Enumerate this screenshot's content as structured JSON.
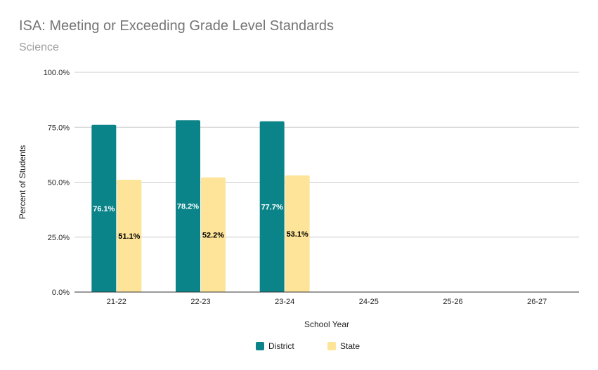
{
  "chart_data": {
    "type": "bar",
    "title": "ISA: Meeting or Exceeding Grade Level Standards",
    "subtitle": "Science",
    "xlabel": "School Year",
    "ylabel": "Percent of Students",
    "categories": [
      "21-22",
      "22-23",
      "23-24",
      "24-25",
      "25-26",
      "26-27"
    ],
    "series": [
      {
        "name": "District",
        "color": "#0b8489",
        "label_color": "#ffffff",
        "values": [
          76.1,
          78.2,
          77.7,
          null,
          null,
          null
        ],
        "labels": [
          "76.1%",
          "78.2%",
          "77.7%",
          "",
          "",
          ""
        ]
      },
      {
        "name": "State",
        "color": "#fee499",
        "label_color": "#000000",
        "values": [
          51.1,
          52.2,
          53.1,
          null,
          null,
          null
        ],
        "labels": [
          "51.1%",
          "52.2%",
          "53.1%",
          "",
          "",
          ""
        ]
      }
    ],
    "ylim": [
      0,
      100
    ],
    "yticks": [
      0,
      25,
      50,
      75,
      100
    ],
    "ytick_labels": [
      "0.0%",
      "25.0%",
      "50.0%",
      "75.0%",
      "100.0%"
    ],
    "grid": true,
    "legend_position": "bottom"
  }
}
